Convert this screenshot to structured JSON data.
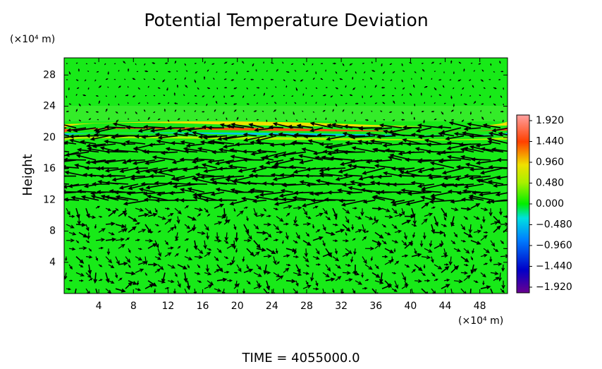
{
  "chart_data": {
    "type": "contour",
    "title": "Potential Temperature Deviation",
    "y_unit_label": "(×10⁴ m)",
    "x_unit_label": "(×10⁴ m)",
    "ylabel": "Height",
    "time_label": "TIME = 4055000.0",
    "xlim": [
      0,
      51.2
    ],
    "ylim": [
      0,
      30.2
    ],
    "xticks": [
      4,
      8,
      12,
      16,
      20,
      24,
      28,
      32,
      36,
      40,
      44,
      48
    ],
    "yticks": [
      4,
      8,
      12,
      16,
      20,
      24,
      28
    ],
    "clim": [
      -2.05,
      2.05
    ],
    "cticks": [
      {
        "value": 1.92,
        "label": "1.920"
      },
      {
        "value": 1.44,
        "label": "1.440"
      },
      {
        "value": 0.96,
        "label": "0.960"
      },
      {
        "value": 0.48,
        "label": "0.480"
      },
      {
        "value": 0,
        "label": "0.000"
      },
      {
        "value": -0.48,
        "label": "−0.480"
      },
      {
        "value": -0.96,
        "label": "−0.960"
      },
      {
        "value": -1.44,
        "label": "−1.440"
      },
      {
        "value": -1.92,
        "label": "−1.920"
      }
    ]
  }
}
